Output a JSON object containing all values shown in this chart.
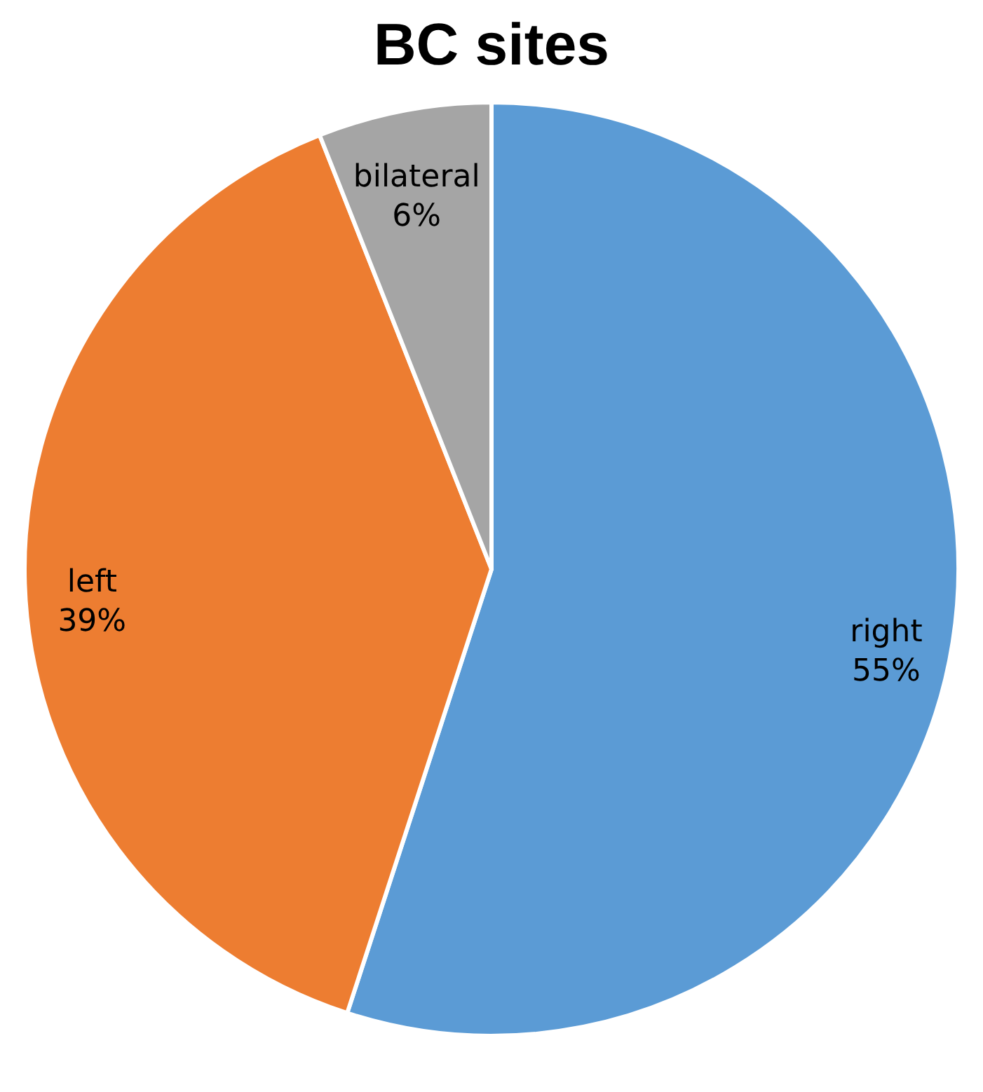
{
  "chart_data": {
    "type": "pie",
    "title": "BC sites",
    "categories": [
      "right",
      "left",
      "bilateral"
    ],
    "values": [
      55,
      39,
      6
    ],
    "colors": [
      "#5b9bd5",
      "#ed7d31",
      "#a5a5a5"
    ],
    "value_labels": [
      "55%",
      "39%",
      "6%"
    ]
  }
}
